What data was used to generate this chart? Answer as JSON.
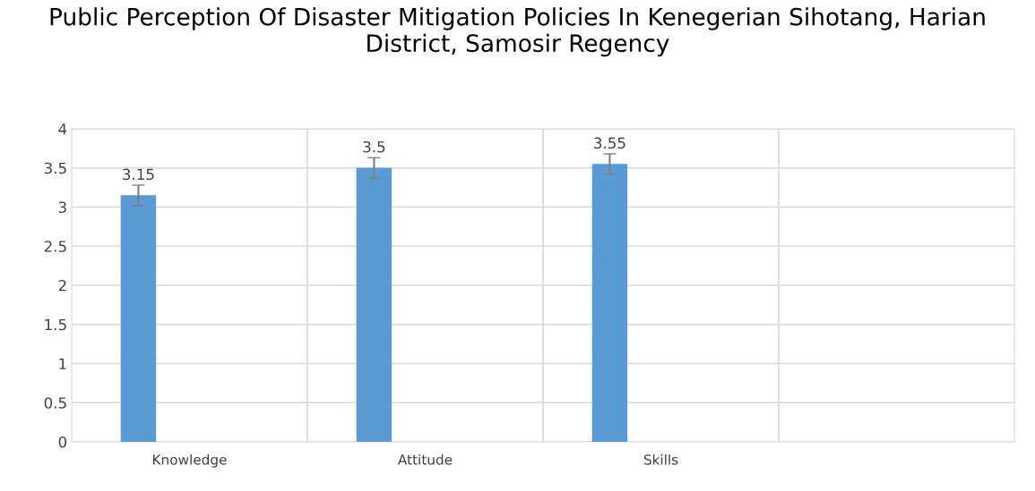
{
  "chart_data": {
    "type": "bar",
    "title": "Public Perception Of Disaster Mitigation Policies In Kenegerian Sihotang, Harian District, Samosir Regency",
    "categories": [
      "Knowledge",
      "Attitude",
      "Skills",
      null
    ],
    "values": [
      3.15,
      3.5,
      3.55,
      null
    ],
    "color": "#5b9bd5",
    "errors": [
      0.13,
      0.13,
      0.13,
      null
    ],
    "data_labels": true,
    "ylim": [
      0,
      4
    ],
    "yticks": [
      0,
      0.5,
      1,
      1.5,
      2,
      2.5,
      3,
      3.5,
      4
    ],
    "grid": true,
    "legend": false
  }
}
